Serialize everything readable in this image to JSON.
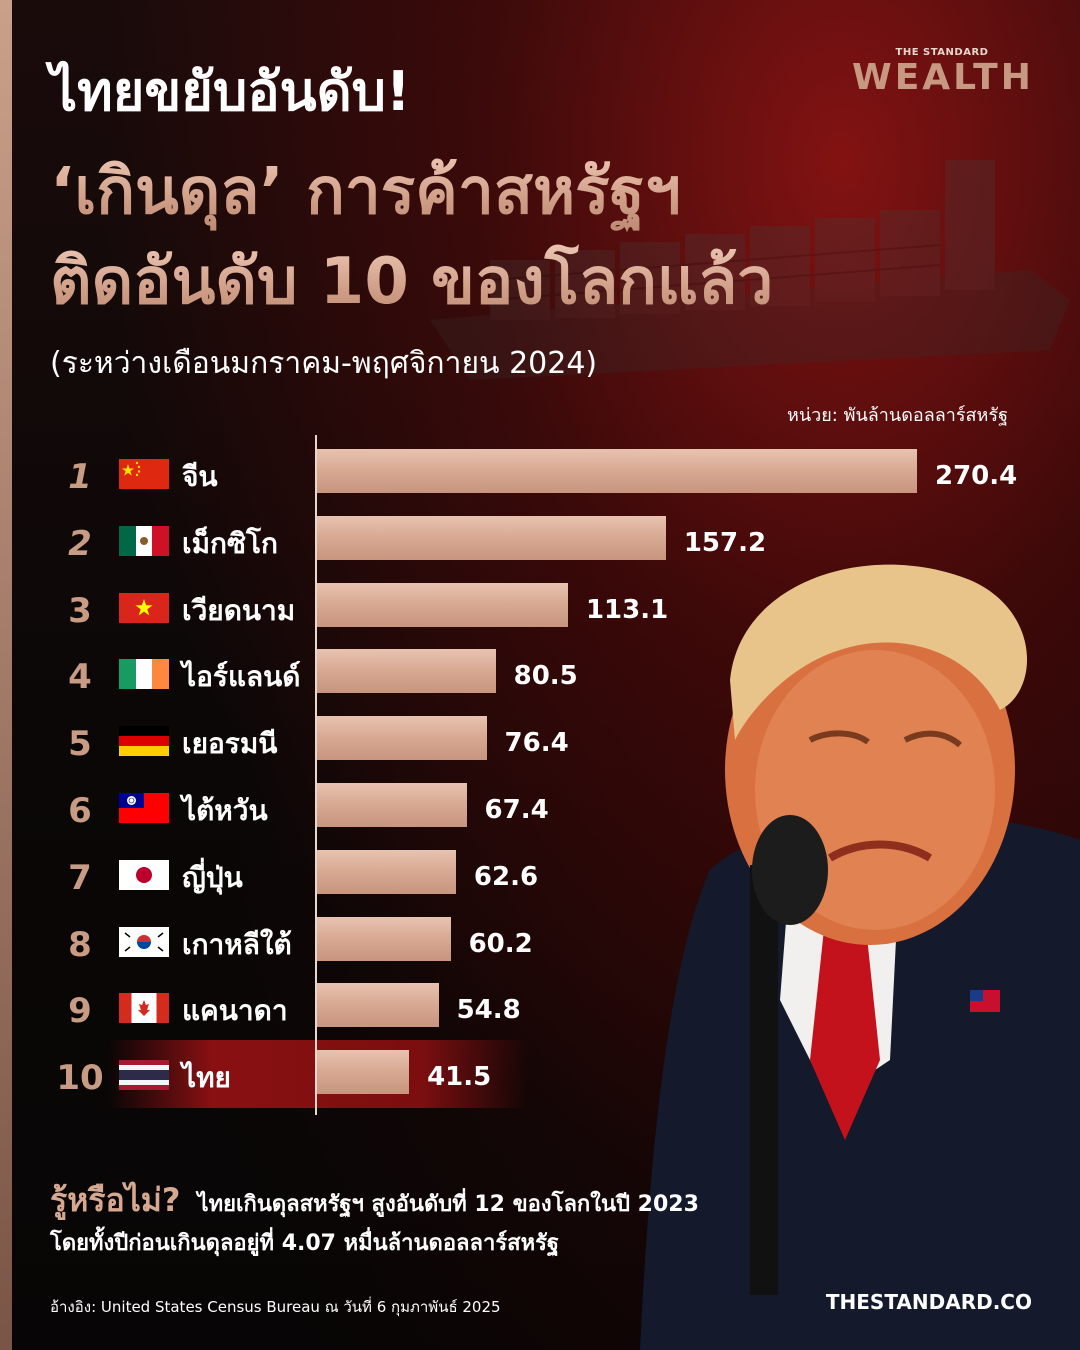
{
  "header": {
    "title_line1": "ไทยขยับอันดับ!",
    "title_line2": "‘เกินดุล’ การค้าสหรัฐฯ",
    "title_line3": "ติดอันดับ 10 ของโลกแล้ว",
    "subtitle": "(ระหว่างเดือนมกราคม-พฤศจิกายน 2024)",
    "brand_small": "THE STANDARD",
    "brand_big": "WEALTH"
  },
  "unit_label": "หน่วย: พันล้านดอลลาร์สหรัฐ",
  "colors": {
    "bar": "#d7a892",
    "rank": "#c79b84",
    "highlight": "#a01214",
    "accent_text": "#d6a890"
  },
  "chart_data": {
    "type": "bar",
    "orientation": "horizontal",
    "ranks": [
      "1",
      "2",
      "3",
      "4",
      "5",
      "6",
      "7",
      "8",
      "9",
      "10"
    ],
    "categories": [
      "จีน",
      "เม็กซิโก",
      "เวียดนาม",
      "ไอร์แลนด์",
      "เยอรมนี",
      "ไต้หวัน",
      "ญี่ปุ่น",
      "เกาหลีใต้",
      "แคนาดา",
      "ไทย"
    ],
    "flags": [
      "china-flag-icon",
      "mexico-flag-icon",
      "vietnam-flag-icon",
      "ireland-flag-icon",
      "germany-flag-icon",
      "taiwan-flag-icon",
      "japan-flag-icon",
      "south-korea-flag-icon",
      "canada-flag-icon",
      "thailand-flag-icon"
    ],
    "values": [
      270.4,
      157.2,
      113.1,
      80.5,
      76.4,
      67.4,
      62.6,
      60.2,
      54.8,
      41.5
    ],
    "value_labels": [
      "270.4",
      "157.2",
      "113.1",
      "80.5",
      "76.4",
      "67.4",
      "62.6",
      "60.2",
      "54.8",
      "41.5"
    ],
    "xlim": [
      0,
      270.4
    ],
    "highlighted_category": "ไทย"
  },
  "fact": {
    "question": "รู้หรือไม่?",
    "line1": "ไทยเกินดุลสหรัฐฯ สูงอันดับที่ 12 ของโลกในปี 2023",
    "line2": "โดยทั้งปีก่อนเกินดุลอยู่ที่ 4.07 หมื่นล้านดอลลาร์สหรัฐ"
  },
  "footer": {
    "source": "อ้างอิง: United States Census Bureau ณ วันที่ 6 กุมภาพันธ์ 2025",
    "site": "THESTANDARD.CO"
  }
}
